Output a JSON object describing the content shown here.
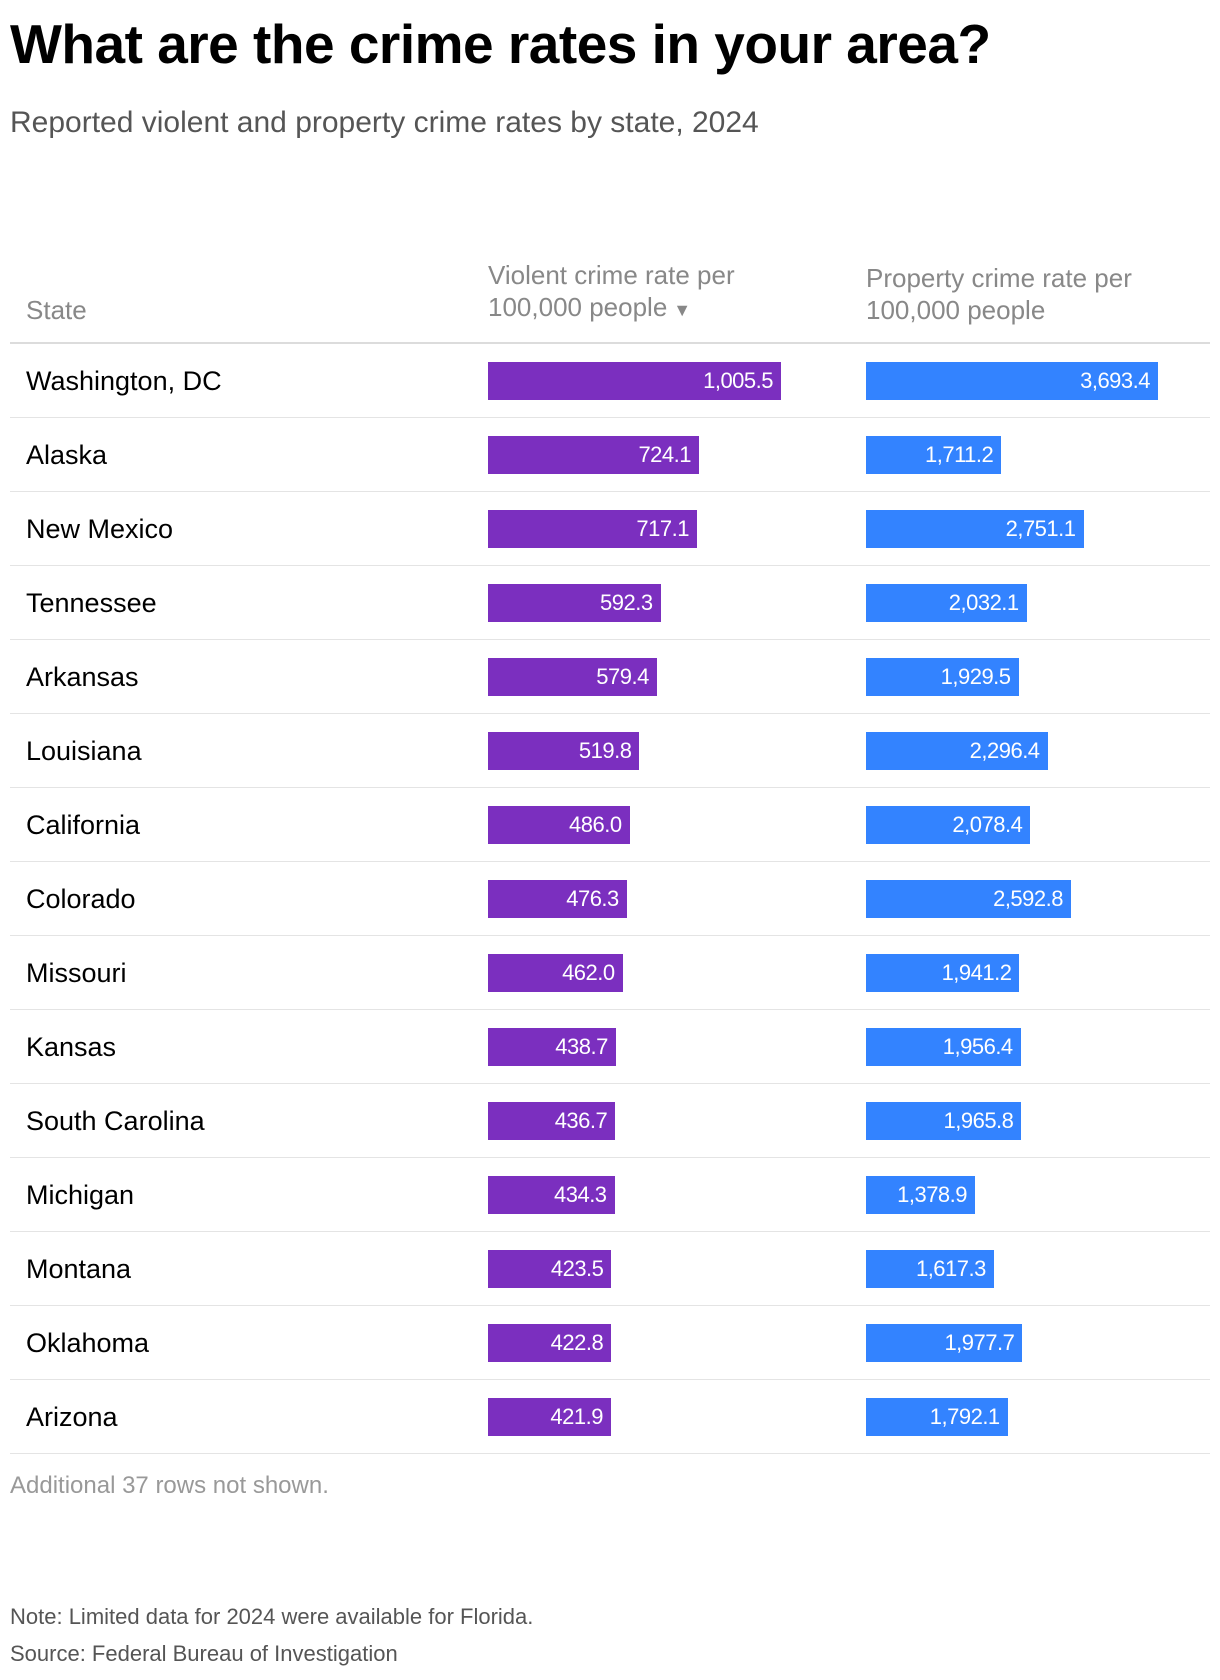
{
  "title": "What are the crime rates in your area?",
  "subtitle": "Reported violent and property crime rates by state, 2024",
  "colors": {
    "violent": "#7b2fbf",
    "property": "#3383ff"
  },
  "sort_icon": "triangle-down-icon",
  "chart_data": {
    "type": "table",
    "columns": [
      "State",
      "Violent crime rate per 100,000 people",
      "Property crime rate per 100,000 people"
    ],
    "sorted_by": "Violent crime rate per 100,000 people",
    "sort_order": "descending",
    "violent_max": 1005.5,
    "property_max": 3693.4,
    "rows": [
      {
        "state": "Washington, DC",
        "violent": 1005.5,
        "violent_label": "1,005.5",
        "property": 3693.4,
        "property_label": "3,693.4"
      },
      {
        "state": "Alaska",
        "violent": 724.1,
        "violent_label": "724.1",
        "property": 1711.2,
        "property_label": "1,711.2"
      },
      {
        "state": "New Mexico",
        "violent": 717.1,
        "violent_label": "717.1",
        "property": 2751.1,
        "property_label": "2,751.1"
      },
      {
        "state": "Tennessee",
        "violent": 592.3,
        "violent_label": "592.3",
        "property": 2032.1,
        "property_label": "2,032.1"
      },
      {
        "state": "Arkansas",
        "violent": 579.4,
        "violent_label": "579.4",
        "property": 1929.5,
        "property_label": "1,929.5"
      },
      {
        "state": "Louisiana",
        "violent": 519.8,
        "violent_label": "519.8",
        "property": 2296.4,
        "property_label": "2,296.4"
      },
      {
        "state": "California",
        "violent": 486.0,
        "violent_label": "486.0",
        "property": 2078.4,
        "property_label": "2,078.4"
      },
      {
        "state": "Colorado",
        "violent": 476.3,
        "violent_label": "476.3",
        "property": 2592.8,
        "property_label": "2,592.8"
      },
      {
        "state": "Missouri",
        "violent": 462.0,
        "violent_label": "462.0",
        "property": 1941.2,
        "property_label": "1,941.2"
      },
      {
        "state": "Kansas",
        "violent": 438.7,
        "violent_label": "438.7",
        "property": 1956.4,
        "property_label": "1,956.4"
      },
      {
        "state": "South Carolina",
        "violent": 436.7,
        "violent_label": "436.7",
        "property": 1965.8,
        "property_label": "1,965.8"
      },
      {
        "state": "Michigan",
        "violent": 434.3,
        "violent_label": "434.3",
        "property": 1378.9,
        "property_label": "1,378.9"
      },
      {
        "state": "Montana",
        "violent": 423.5,
        "violent_label": "423.5",
        "property": 1617.3,
        "property_label": "1,617.3"
      },
      {
        "state": "Oklahoma",
        "violent": 422.8,
        "violent_label": "422.8",
        "property": 1977.7,
        "property_label": "1,977.7"
      },
      {
        "state": "Arizona",
        "violent": 421.9,
        "violent_label": "421.9",
        "property": 1792.1,
        "property_label": "1,792.1"
      }
    ]
  },
  "header": {
    "state": "State",
    "violent_line1": "Violent crime rate per",
    "violent_line2": "100,000 people",
    "property_line1": "Property crime rate per",
    "property_line2": "100,000 people"
  },
  "more_rows_text": "Additional 37 rows not shown.",
  "note": "Note: Limited data for 2024 were available for Florida.",
  "source": "Source: Federal Bureau of Investigation"
}
